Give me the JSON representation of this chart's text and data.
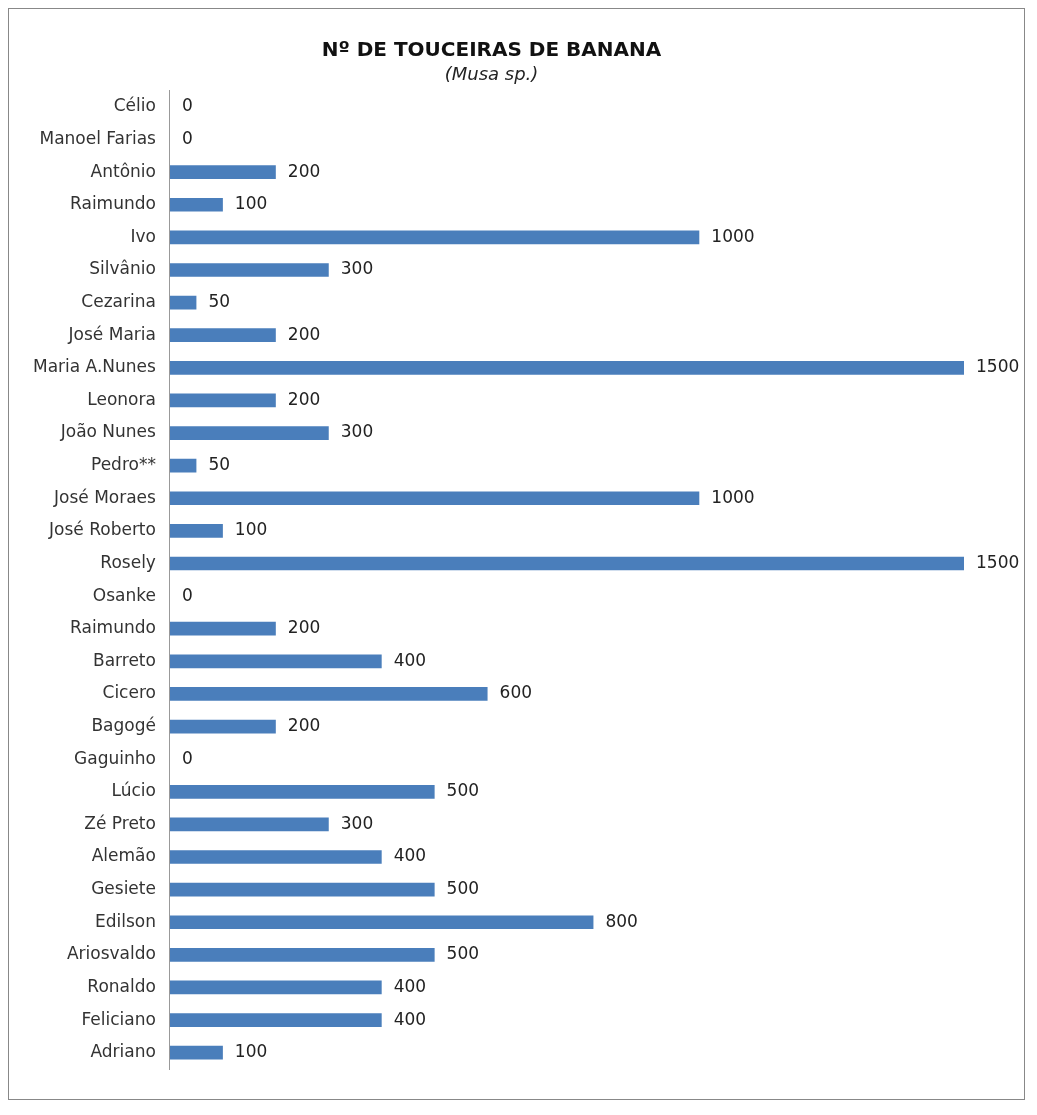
{
  "chart_data": {
    "type": "bar",
    "orientation": "horizontal",
    "title": "Nº DE TOUCEIRAS DE BANANA",
    "subtitle": "(Musa sp.)",
    "categories": [
      "Célio",
      "Manoel Farias",
      "Antônio",
      "Raimundo",
      "Ivo",
      "Silvânio",
      "Cezarina",
      "José Maria",
      "Maria A.Nunes",
      "Leonora",
      "João Nunes",
      "Pedro**",
      "José Moraes",
      "José Roberto",
      "Rosely",
      "Osanke",
      "Raimundo",
      "Barreto",
      "Cicero",
      "Bagogé",
      "Gaguinho",
      "Lúcio",
      "Zé Preto",
      "Alemão",
      "Gesiete",
      "Edilson",
      "Ariosvaldo",
      "Ronaldo",
      "Feliciano",
      "Adriano"
    ],
    "values": [
      0,
      0,
      200,
      100,
      1000,
      300,
      50,
      200,
      1500,
      200,
      300,
      50,
      1000,
      100,
      1500,
      0,
      200,
      400,
      600,
      200,
      0,
      500,
      300,
      400,
      500,
      800,
      500,
      400,
      400,
      100
    ],
    "color": "#4a7ebb",
    "data_labels": true,
    "tick_labels": "y"
  }
}
